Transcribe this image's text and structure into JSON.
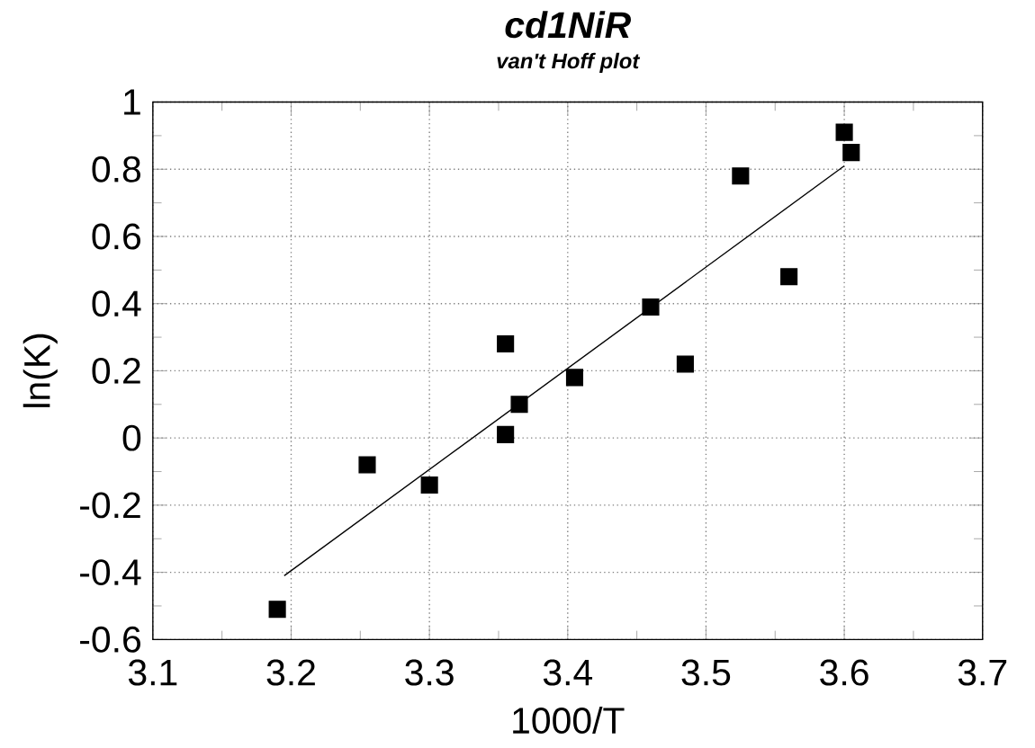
{
  "chart_data": {
    "type": "scatter",
    "title": "cd1NiR",
    "subtitle": "van't Hoff plot",
    "xlabel": "1000/T",
    "ylabel": "ln(K)",
    "grid": true,
    "marker": "square",
    "series": [
      {
        "color": "#000000",
        "x": [
          3.19,
          3.255,
          3.3,
          3.355,
          3.355,
          3.365,
          3.405,
          3.46,
          3.485,
          3.525,
          3.56,
          3.6,
          3.605
        ],
        "values": [
          -0.51,
          -0.08,
          -0.14,
          0.28,
          0.01,
          0.1,
          0.18,
          0.39,
          0.22,
          0.78,
          0.48,
          0.91,
          0.85
        ]
      },
      {
        "type": "line",
        "color": "#000000",
        "marker": "none",
        "x": [
          3.195,
          3.6
        ],
        "values": [
          -0.41,
          0.81
        ]
      }
    ],
    "xlim": [
      3.1,
      3.7
    ],
    "xticks": [
      3.1,
      3.2,
      3.3,
      3.4,
      3.5,
      3.6,
      3.7
    ],
    "ylim": [
      -0.6,
      1
    ],
    "yticks": [
      -0.6,
      -0.4,
      -0.2,
      0,
      0.2,
      0.4,
      0.6,
      0.8,
      1
    ]
  }
}
